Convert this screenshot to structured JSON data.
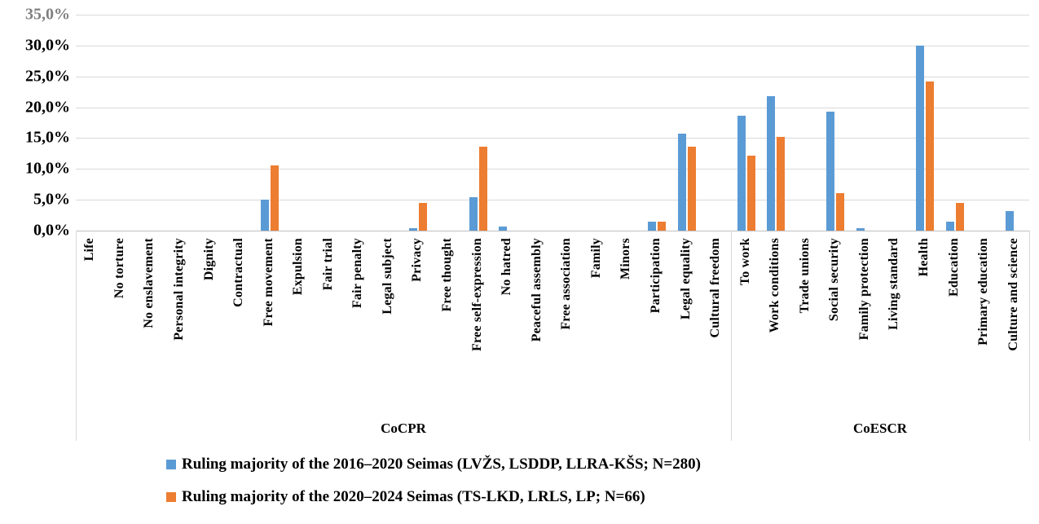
{
  "chart_data": {
    "type": "bar",
    "title": "",
    "legend_position": "bottom",
    "y_axis": {
      "unit": "%",
      "min": 0,
      "max": 35,
      "step": 5,
      "grid": true,
      "tick_labels_bottom_to_top": [
        "0,0%",
        "5,0%",
        "10,0%",
        "15,0%",
        "20,0%",
        "25,0%",
        "30,0%",
        "35,0%"
      ]
    },
    "x_axis": {
      "groups": [
        {
          "label": "CoCPR",
          "categories": [
            "Life",
            "No torture",
            "No enslavement",
            "Personal integrity",
            "Dignity",
            "Contractual",
            "Free movement",
            "Expulsion",
            "Fair trial",
            "Fair penalty",
            "Legal subject",
            "Privacy",
            "Free thought",
            "Free self-expression",
            "No hatred",
            "Peaceful assembly",
            "Free association",
            "Family",
            "Minors",
            "Participation",
            "Legal equality",
            "Cultural freedom"
          ]
        },
        {
          "label": "CoESCR",
          "categories": [
            "To work",
            "Work conditions",
            "Trade unions",
            "Social security",
            "Family protection",
            "Living standard",
            "Health",
            "Education",
            "Primary education",
            "Culture and science"
          ]
        }
      ]
    },
    "series": [
      {
        "name": "Ruling majority of the 2016–2020 Seimas (LVŽS, LSDDP, LLRA-KŠS; N=280)",
        "color": "#5B9BD5",
        "values_by_group": [
          [
            0,
            0,
            0,
            0,
            0,
            0,
            5.0,
            0,
            0,
            0,
            0,
            0.4,
            0,
            5.4,
            0.7,
            0,
            0,
            0,
            0,
            1.4,
            15.7,
            0
          ],
          [
            18.6,
            21.8,
            0,
            19.3,
            0.4,
            0,
            30.0,
            1.4,
            0,
            3.2
          ]
        ]
      },
      {
        "name": "Ruling majority of the 2020–2024 Seimas (TS-LKD, LRLS, LP; N=66)",
        "color": "#ED7D31",
        "values_by_group": [
          [
            0,
            0,
            0,
            0,
            0,
            0,
            10.6,
            0,
            0,
            0,
            0,
            4.5,
            0,
            13.6,
            0,
            0,
            0,
            0,
            0,
            1.5,
            13.6,
            0
          ],
          [
            12.1,
            15.2,
            0,
            6.1,
            0,
            0,
            24.2,
            4.5,
            0,
            0
          ]
        ]
      }
    ],
    "colors": {
      "gridline": "#D9D9D9",
      "axis_line": "#BFBFBF",
      "top_tick_label": "#7F7F7F",
      "text": "#000000"
    }
  }
}
